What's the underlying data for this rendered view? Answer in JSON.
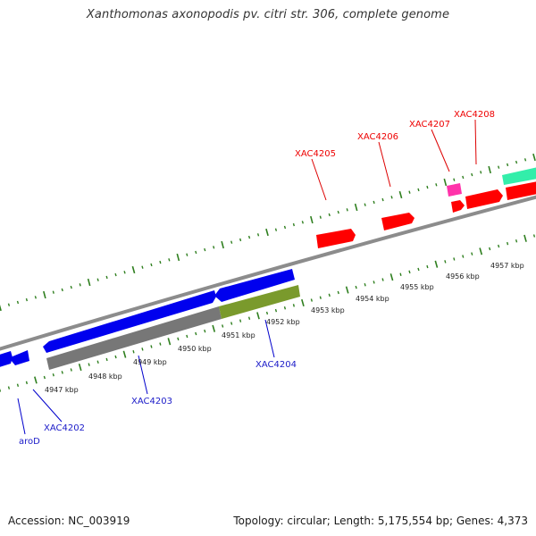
{
  "title": "Xanthomonas axonopodis pv. citri str. 306, complete genome",
  "footer": {
    "accession": "Accession: NC_003919",
    "genome_info": "Topology: circular; Length: 5,175,554 bp; Genes: 4,373"
  },
  "colors": {
    "forward_gene": "#ff0000",
    "forward_label": "#ee0000",
    "reverse_gene": "#0000ee",
    "reverse_label": "#1a1ac8",
    "cds_grey": "#777777",
    "cds_olive": "#7a9a2c",
    "rna_magenta": "#ff33aa",
    "teal_feature": "#33eeaa",
    "backbone": "#8c8c8c",
    "tick_green": "#2f7f1f"
  },
  "scale": {
    "unit": "kbp",
    "ticks": [
      "4947 kbp",
      "4948 kbp",
      "4949 kbp",
      "4950 kbp",
      "4951 kbp",
      "4952 kbp",
      "4953 kbp",
      "4954 kbp",
      "4955 kbp",
      "4956 kbp",
      "4957 kbp"
    ]
  },
  "genes_forward": [
    {
      "name": "XAC4205",
      "label": "XAC4205"
    },
    {
      "name": "XAC4206",
      "label": "XAC4206"
    },
    {
      "name": "XAC4207",
      "label": "XAC4207"
    },
    {
      "name": "XAC4208",
      "label": "XAC4208"
    }
  ],
  "genes_reverse": [
    {
      "name": "aroD",
      "label": "aroD"
    },
    {
      "name": "XAC4202",
      "label": "XAC4202"
    },
    {
      "name": "XAC4203",
      "label": "XAC4203"
    },
    {
      "name": "XAC4204",
      "label": "XAC4204"
    }
  ]
}
